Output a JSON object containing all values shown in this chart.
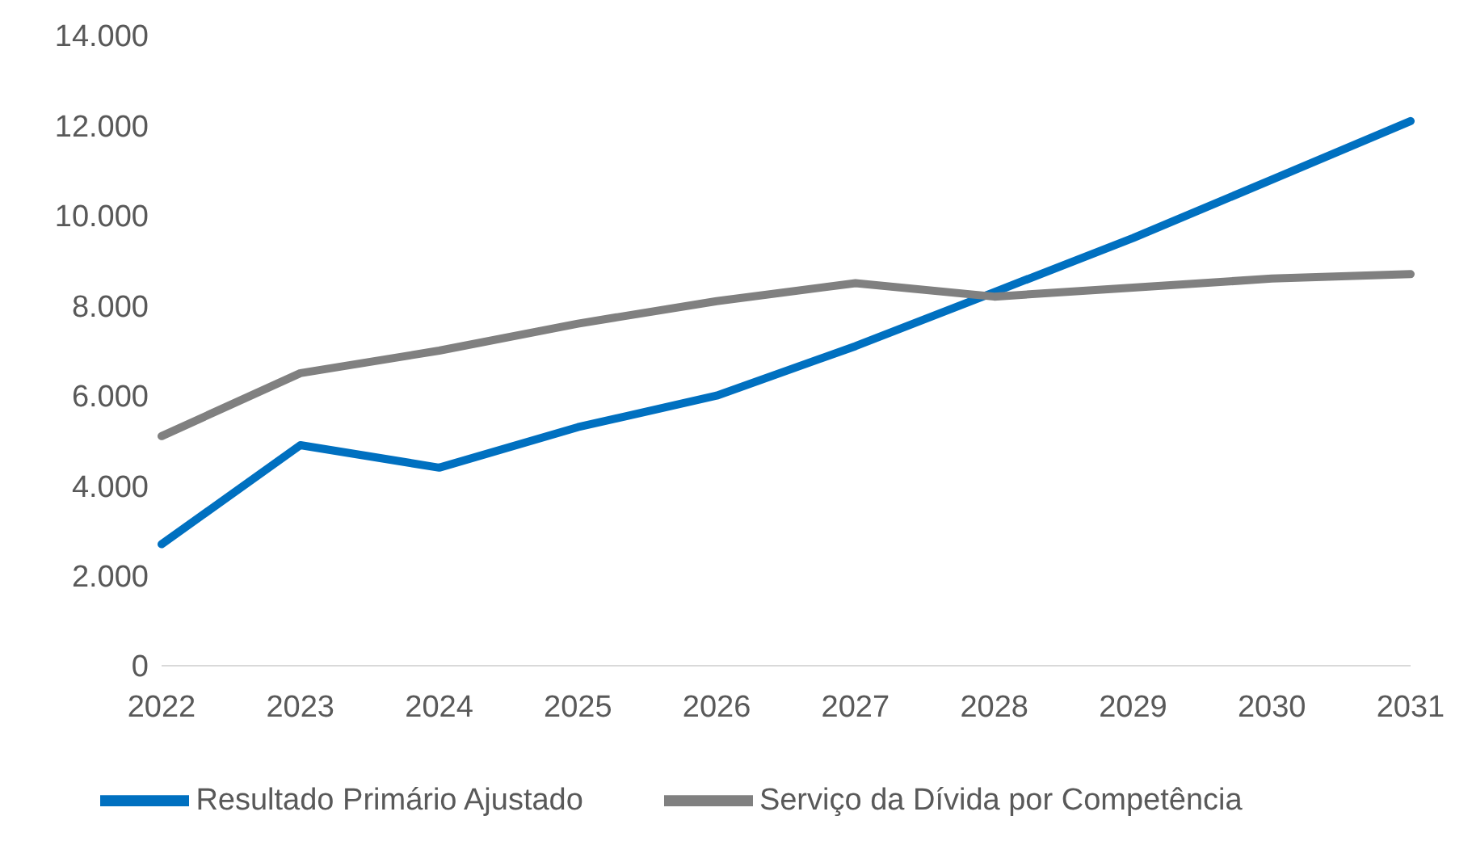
{
  "chart_data": {
    "type": "line",
    "categories": [
      "2022",
      "2023",
      "2024",
      "2025",
      "2026",
      "2027",
      "2028",
      "2029",
      "2030",
      "2031"
    ],
    "series": [
      {
        "name": "Resultado Primário Ajustado",
        "color": "#0070c0",
        "values": [
          2700,
          4900,
          4400,
          5300,
          6000,
          7100,
          8300,
          9500,
          10800,
          12100
        ]
      },
      {
        "name": "Serviço da Dívida por Competência",
        "color": "#808080",
        "values": [
          5100,
          6500,
          7000,
          7600,
          8100,
          8500,
          8200,
          8400,
          8600,
          8700
        ]
      }
    ],
    "ylim": [
      0,
      14000
    ],
    "yticks": [
      {
        "value": 0,
        "label": "0"
      },
      {
        "value": 2000,
        "label": "2.000"
      },
      {
        "value": 4000,
        "label": "4.000"
      },
      {
        "value": 6000,
        "label": "6.000"
      },
      {
        "value": 8000,
        "label": "8.000"
      },
      {
        "value": 10000,
        "label": "10.000"
      },
      {
        "value": 12000,
        "label": "12.000"
      },
      {
        "value": 14000,
        "label": "14.000"
      }
    ],
    "grid": false,
    "legend": "bottom",
    "marker": "none",
    "line_style": "solid"
  }
}
